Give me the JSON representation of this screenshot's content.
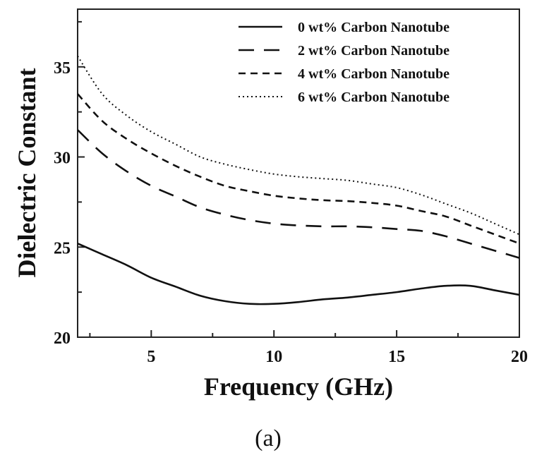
{
  "chart_data": {
    "type": "line",
    "title": "",
    "xlabel": "Frequency (GHz)",
    "ylabel": "Dielectric Constant",
    "xlim": [
      2,
      20
    ],
    "ylim": [
      20,
      38.2
    ],
    "xticks": [
      5,
      10,
      15,
      20
    ],
    "yticks": [
      20,
      25,
      30,
      35
    ],
    "grid": false,
    "legend_position": "top-right",
    "caption": "(a)",
    "x": [
      2,
      3,
      4,
      5,
      6,
      7,
      8,
      9,
      10,
      11,
      12,
      13,
      14,
      15,
      16,
      17,
      18,
      19,
      20
    ],
    "series": [
      {
        "name": "0 wt% Carbon Nanotube",
        "dash": "solid",
        "values": [
          25.2,
          24.6,
          24.0,
          23.3,
          22.8,
          22.3,
          22.0,
          21.85,
          21.85,
          21.95,
          22.1,
          22.2,
          22.35,
          22.5,
          22.7,
          22.85,
          22.85,
          22.6,
          22.35
        ]
      },
      {
        "name": "2 wt% Carbon Nanotube",
        "dash": "long-dash",
        "values": [
          31.5,
          30.2,
          29.2,
          28.4,
          27.8,
          27.2,
          26.8,
          26.5,
          26.3,
          26.2,
          26.15,
          26.15,
          26.1,
          26.0,
          25.9,
          25.6,
          25.2,
          24.8,
          24.4
        ]
      },
      {
        "name": "4 wt% Carbon Nanotube",
        "dash": "short-dash",
        "values": [
          33.5,
          32.0,
          31.0,
          30.2,
          29.5,
          28.9,
          28.4,
          28.1,
          27.85,
          27.7,
          27.6,
          27.55,
          27.45,
          27.3,
          27.0,
          26.7,
          26.2,
          25.7,
          25.2
        ]
      },
      {
        "name": "6 wt% Carbon Nanotube",
        "dash": "dotted",
        "values": [
          35.6,
          33.5,
          32.3,
          31.4,
          30.7,
          30.0,
          29.6,
          29.3,
          29.05,
          28.9,
          28.8,
          28.7,
          28.5,
          28.3,
          27.9,
          27.4,
          26.9,
          26.3,
          25.7
        ]
      }
    ]
  }
}
